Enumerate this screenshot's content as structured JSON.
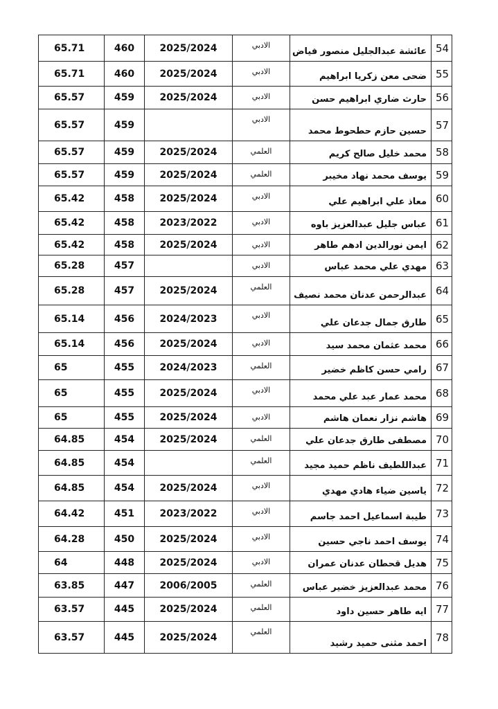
{
  "table": {
    "rows": [
      [
        "54",
        "عائشة عبدالجليل منصور فياض",
        "الادبي",
        "2025/2024",
        460,
        65.71
      ],
      [
        "55",
        "ضحى معن زكريا ابراهيم",
        "الادبي",
        "2025/2024",
        460,
        65.71
      ],
      [
        "56",
        "حارث ضاري ابراهيم حسن",
        "الادبي",
        "2025/2024",
        459,
        65.57
      ],
      [
        "57",
        "حسين حازم حطحوط محمد",
        "الادبي",
        null,
        459,
        65.57
      ],
      [
        "58",
        "محمد خليل صالح كريم",
        "العلمي",
        "2025/2024",
        459,
        65.57
      ],
      [
        "59",
        "يوسف محمد نهاد مخيبر",
        "العلمي",
        "2025/2024",
        459,
        65.57
      ],
      [
        "60",
        "معاذ علي ابراهيم علي",
        "الادبي",
        "2025/2024",
        458,
        65.42
      ],
      [
        "61",
        "عباس جليل عبدالعزيز باوه",
        "الادبي",
        "2023/2022",
        458,
        65.42
      ],
      [
        "62",
        "ايمن نورالدين ادهم طاهر",
        "الادبي",
        "2025/2024",
        458,
        65.42
      ],
      [
        "63",
        "مهدي علي محمد عباس",
        "الادبي",
        null,
        457,
        65.28
      ],
      [
        "64",
        "عبدالرحمن عدنان محمد نصيف",
        "العلمي",
        "2025/2024",
        457,
        65.28
      ],
      [
        "65",
        "طارق جمال جدعان علي",
        "الادبي",
        "2024/2023",
        456,
        65.14
      ],
      [
        "66",
        "محمد عثمان محمد سيد",
        "الادبي",
        "2025/2024",
        456,
        65.14
      ],
      [
        "67",
        "رامي حسن كاظم خضير",
        "العلمي",
        "2024/2023",
        455,
        65
      ],
      [
        "68",
        "محمد عمار عبد علي محمد",
        "الادبي",
        "2025/2024",
        455,
        65
      ],
      [
        "69",
        "هاشم نزار نعمان هاشم",
        "الادبي",
        "2025/2024",
        455,
        65
      ],
      [
        "70",
        "مصطفى طارق جدعان علي",
        "العلمي",
        "2025/2024",
        454,
        64.85
      ],
      [
        "71",
        "عبداللطيف ناظم حميد مجيد",
        "العلمي",
        null,
        454,
        64.85
      ],
      [
        "72",
        "ياسين ضياء هادي مهدي",
        "الادبي",
        "2025/2024",
        454,
        64.85
      ],
      [
        "73",
        "طيبة اسماعيل احمد جاسم",
        "الادبي",
        "2023/2022",
        451,
        64.42
      ],
      [
        "74",
        "يوسف احمد ناجي حسين",
        "الادبي",
        "2025/2024",
        450,
        64.28
      ],
      [
        "75",
        "هديل قحطان عدنان عمران",
        "الادبي",
        "2025/2024",
        448,
        64
      ],
      [
        "76",
        "محمد عبدالعزيز خضير عباس",
        "العلمي",
        "2006/2005",
        447,
        63.85
      ],
      [
        "77",
        "ايه طاهر حسين داود",
        "العلمي",
        "2025/2024",
        445,
        63.57
      ],
      [
        "78",
        "احمد مثنى حميد رشيد",
        "العلمي",
        "2025/2024",
        445,
        63.57
      ]
    ]
  }
}
